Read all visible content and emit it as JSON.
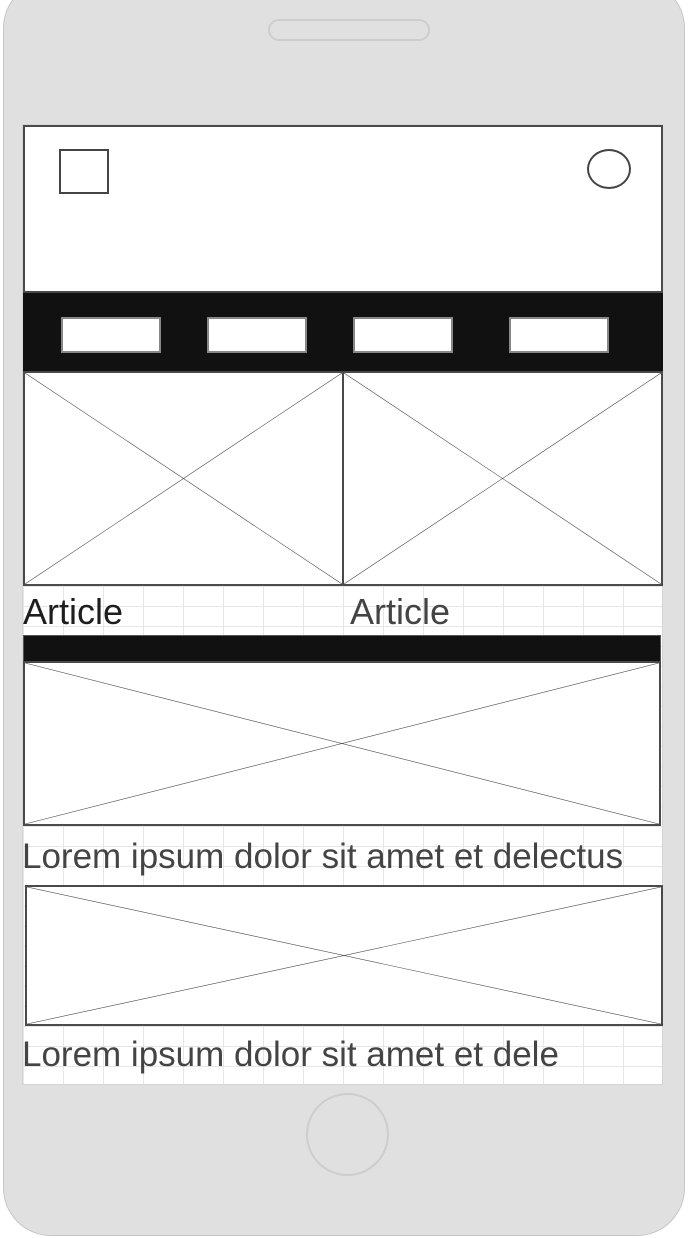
{
  "header": {
    "menu_icon": "square-placeholder-icon",
    "profile_icon": "circle-placeholder-icon"
  },
  "nav": {
    "items": [
      "",
      "",
      "",
      ""
    ]
  },
  "articles": [
    {
      "caption": "Article",
      "image_icon": "image-placeholder-icon"
    },
    {
      "caption": "Article",
      "image_icon": "image-placeholder-icon"
    }
  ],
  "feed": [
    {
      "caption": "Lorem ipsum dolor sit amet et delectus",
      "image_icon": "image-placeholder-icon"
    },
    {
      "caption": "Lorem ipsum dolor sit amet et dele",
      "image_icon": "image-placeholder-icon"
    }
  ],
  "colors": {
    "device": "#e0e0e0",
    "bar": "#111111",
    "outline": "#4a4a4a"
  }
}
